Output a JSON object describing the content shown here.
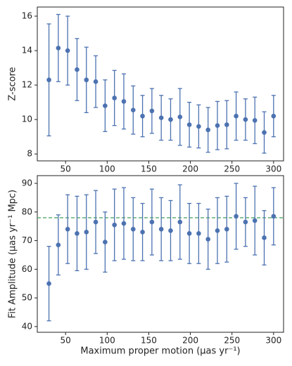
{
  "chart_data": [
    {
      "type": "errorbar",
      "ylabel": "Z-score",
      "color": "#4c72b0",
      "x": [
        30,
        41.25,
        52.5,
        63.75,
        75,
        86.25,
        97.5,
        108.75,
        120,
        131.25,
        142.5,
        153.75,
        165,
        176.25,
        187.5,
        198.75,
        210,
        221.25,
        232.5,
        243.75,
        255,
        266.25,
        277.5,
        288.75,
        300
      ],
      "values": [
        12.3,
        14.15,
        14.0,
        12.9,
        12.3,
        12.2,
        10.8,
        11.25,
        11.05,
        10.55,
        10.2,
        10.5,
        10.1,
        10.0,
        10.15,
        9.7,
        9.6,
        9.4,
        9.65,
        9.7,
        10.2,
        10.0,
        9.95,
        9.25,
        10.2
      ],
      "errors": [
        3.25,
        1.95,
        2.0,
        1.8,
        1.9,
        1.5,
        1.5,
        1.6,
        1.6,
        1.4,
        1.2,
        1.3,
        1.3,
        1.2,
        1.65,
        1.3,
        1.25,
        1.3,
        1.4,
        1.4,
        1.4,
        1.2,
        1.35,
        1.2,
        1.2
      ],
      "xlim": [
        16,
        312
      ],
      "xticks": [
        50,
        100,
        150,
        200,
        250,
        300
      ],
      "ylim": [
        7.6,
        16.53
      ],
      "yticks": [
        8,
        10,
        12,
        14,
        16
      ]
    },
    {
      "type": "errorbar",
      "ylabel": "Fit Amplitude (μas yr⁻¹ Mpc)",
      "xlabel": "Maximum proper motion (μas yr⁻¹)",
      "color": "#4c72b0",
      "x": [
        30,
        41.25,
        52.5,
        63.75,
        75,
        86.25,
        97.5,
        108.75,
        120,
        131.25,
        142.5,
        153.75,
        165,
        176.25,
        187.5,
        198.75,
        210,
        221.25,
        232.5,
        243.75,
        255,
        266.25,
        277.5,
        288.75,
        300
      ],
      "values": [
        55,
        68.5,
        74,
        72.5,
        73,
        76.5,
        69.5,
        75.5,
        76,
        74,
        73,
        76.5,
        74,
        73.5,
        76.5,
        72.5,
        72.5,
        70.5,
        73.5,
        74,
        78.5,
        76.5,
        77,
        71,
        78.5
      ],
      "errors": [
        13,
        10.5,
        12,
        13,
        13,
        11,
        10.5,
        12.5,
        12.5,
        11,
        10,
        11.5,
        11,
        10.5,
        13,
        10.5,
        10.5,
        10.5,
        11.5,
        11.5,
        11.5,
        8.5,
        12,
        9.5,
        10
      ],
      "reference_line": {
        "value": 78,
        "color": "#55a868"
      },
      "xlim": [
        16,
        312
      ],
      "xticks": [
        50,
        100,
        150,
        200,
        250,
        300
      ],
      "ylim": [
        38,
        92.7
      ],
      "yticks": [
        40,
        50,
        60,
        70,
        80,
        90
      ]
    }
  ]
}
